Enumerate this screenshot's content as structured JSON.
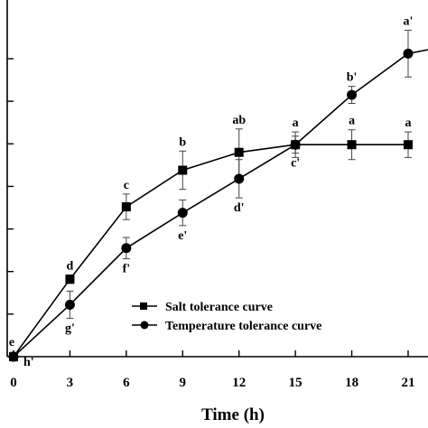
{
  "chart_data": {
    "type": "line",
    "xlabel": "Time (h)",
    "ylabel": "",
    "x": [
      0,
      3,
      6,
      9,
      12,
      15,
      18,
      21
    ],
    "x_ticks": [
      0,
      3,
      6,
      9,
      12,
      15,
      18,
      21
    ],
    "xlim": [
      0,
      24
    ],
    "ylim": [
      0,
      8
    ],
    "y_ticks": [
      1,
      2,
      3,
      4,
      5,
      6,
      7
    ],
    "y_tick_labels_visible": false,
    "grid": false,
    "legend_position": "center-right",
    "series": [
      {
        "name": "Salt tolerance curve",
        "marker": "square",
        "x": [
          0,
          3,
          6,
          9,
          12,
          15,
          18,
          21
        ],
        "values": [
          0.0,
          1.82,
          3.52,
          4.38,
          4.8,
          4.98,
          4.98,
          4.98
        ],
        "errors": [
          0.1,
          0.1,
          0.3,
          0.45,
          0.55,
          0.3,
          0.35,
          0.3
        ],
        "labels": [
          "e",
          "d",
          "c",
          "b",
          "ab",
          "a",
          "a",
          "a"
        ]
      },
      {
        "name": "Temperature tolerance curve",
        "marker": "circle",
        "x": [
          0,
          3,
          6,
          9,
          12,
          15,
          18,
          21
        ],
        "values": [
          0.0,
          1.22,
          2.55,
          3.38,
          4.18,
          4.98,
          6.15,
          7.12
        ],
        "errors": [
          0.1,
          0.32,
          0.25,
          0.3,
          0.45,
          0.2,
          0.2,
          0.55
        ],
        "labels": [
          "h'",
          "g'",
          "f'",
          "e'",
          "d'",
          "c'",
          "b'",
          "a'"
        ]
      }
    ],
    "extra_point": {
      "x": 22.5,
      "y": 7.25
    }
  }
}
